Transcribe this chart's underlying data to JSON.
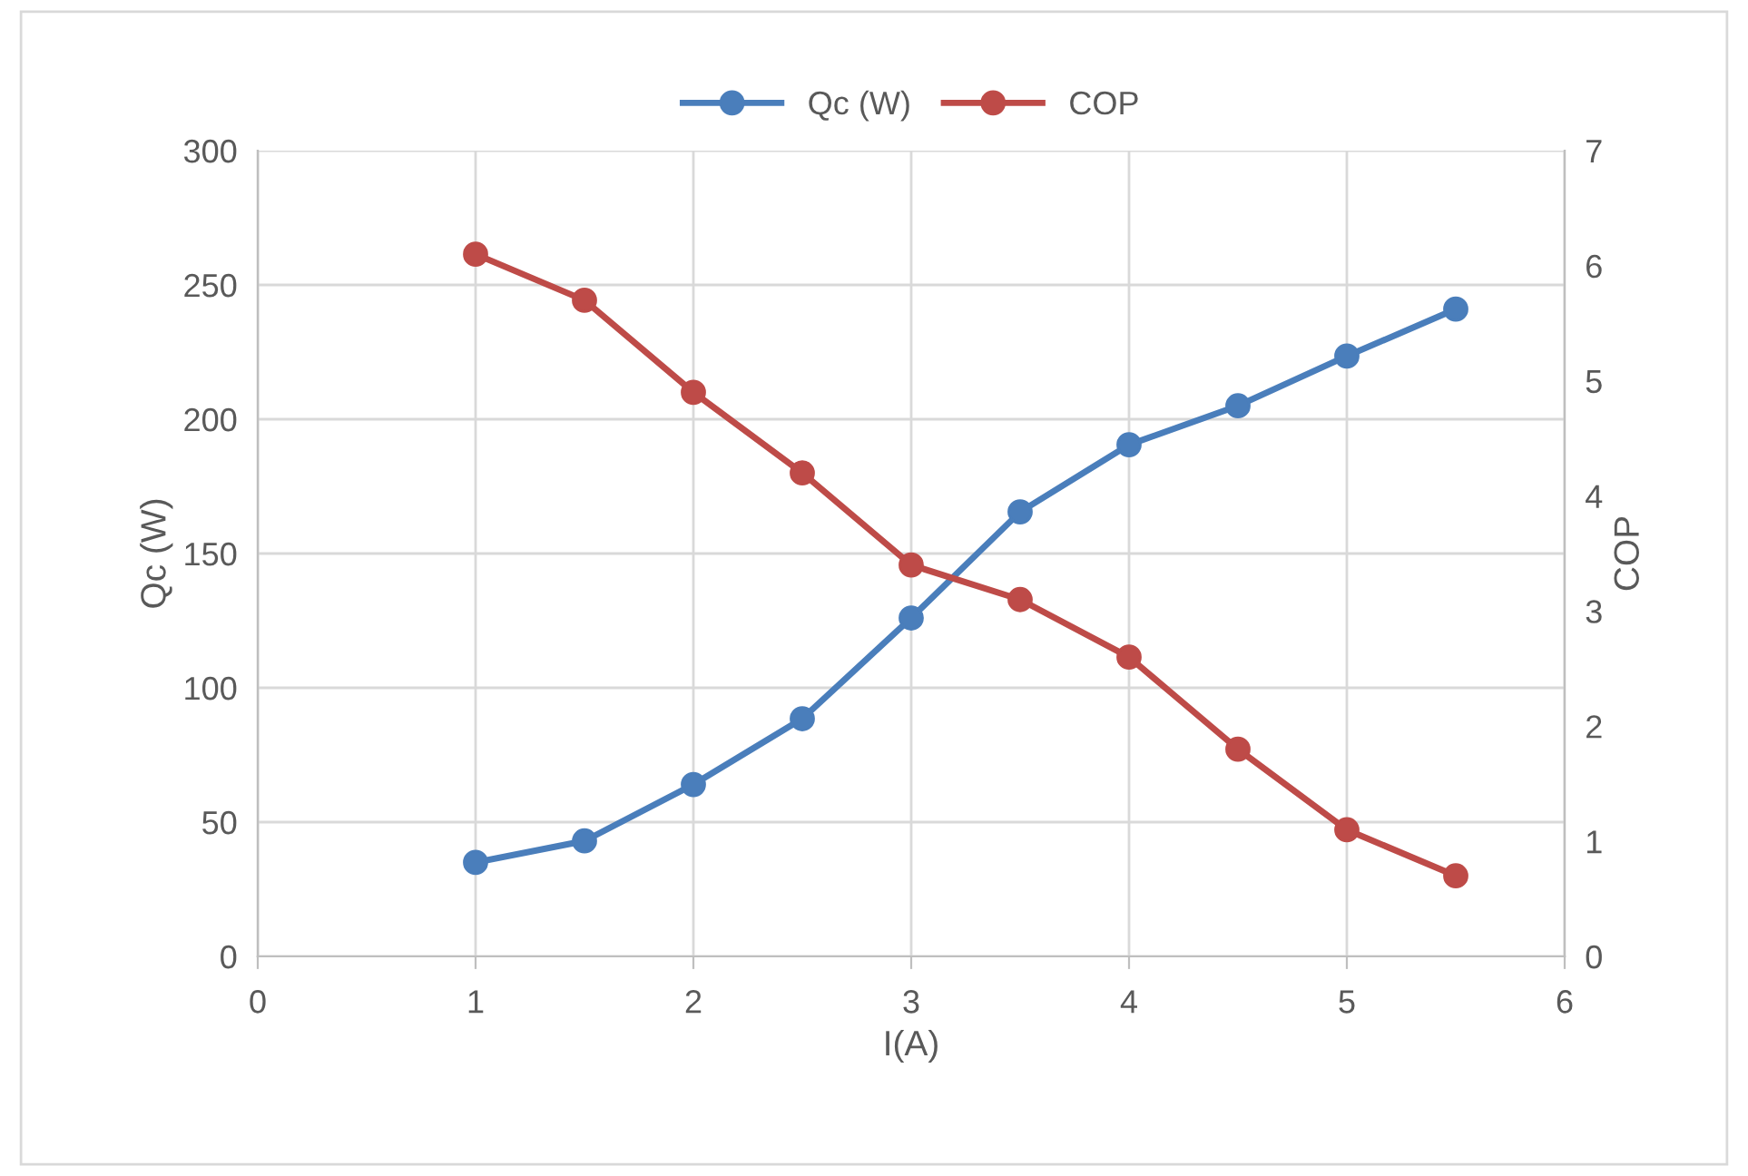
{
  "chart_data": {
    "type": "line",
    "xlabel": "I(A)",
    "ylabel": "Qc (W)",
    "y2label": "COP",
    "x": [
      1,
      1.5,
      2,
      2.5,
      3,
      3.5,
      4,
      4.5,
      5,
      5.5
    ],
    "series": [
      {
        "name": "Qc (W)",
        "color": "#4a7ebb",
        "values": [
          35,
          43,
          64,
          88.5,
          126,
          165.5,
          190.5,
          205,
          223.5,
          241
        ]
      },
      {
        "name": "COP",
        "color": "#be4b48",
        "axis": "y2",
        "values": [
          6.1,
          5.7,
          4.9,
          4.2,
          3.4,
          3.1,
          2.6,
          1.8,
          1.1,
          0.7
        ]
      }
    ],
    "xlim": [
      0,
      6
    ],
    "xticks": [
      0,
      1,
      2,
      3,
      4,
      5,
      6
    ],
    "ylim": [
      0,
      300
    ],
    "yticks": [
      0,
      50,
      100,
      150,
      200,
      250,
      300
    ],
    "y2lim": [
      0,
      7
    ],
    "y2ticks": [
      0,
      1,
      2,
      3,
      4,
      5,
      6,
      7
    ],
    "grid": true,
    "legend": "top",
    "marker": "circle",
    "line_style": "solid"
  }
}
